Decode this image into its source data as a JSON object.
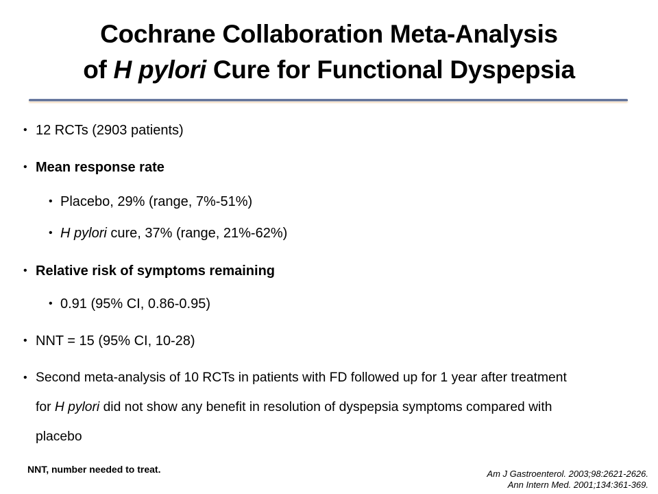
{
  "title": {
    "line1": "Cochrane Collaboration Meta-Analysis",
    "line2_pre": "of ",
    "line2_italic": "H pylori",
    "line2_post": " Cure for Functional Dyspepsia"
  },
  "bullets": {
    "b1": "12 RCTs (2903 patients)",
    "b2": "Mean response rate",
    "b2_1": "Placebo, 29% (range, 7%-51%)",
    "b2_2_italic": "H pylori",
    "b2_2": " cure, 37% (range, 21%-62%)",
    "b3": "Relative risk of symptoms remaining",
    "b3_1": "0.91 (95% CI, 0.86-0.95)",
    "b4": "NNT = 15 (95% CI, 10-28)",
    "b5_line1": "Second meta-analysis of 10 RCTs in patients with FD followed up for 1 year after treatment",
    "b5_line2_pre": "for ",
    "b5_line2_italic": "H pylori",
    "b5_line2_post": " did not show any benefit in resolution of dyspepsia symptoms compared with",
    "b5_line3": "placebo",
    "bullet_glyph": "•"
  },
  "footnote": "NNT, number needed to treat.",
  "citations": [
    "Am J Gastroenterol.  2003;98:2621-2626.",
    "Ann Intern Med.  2001;134:361-369."
  ]
}
